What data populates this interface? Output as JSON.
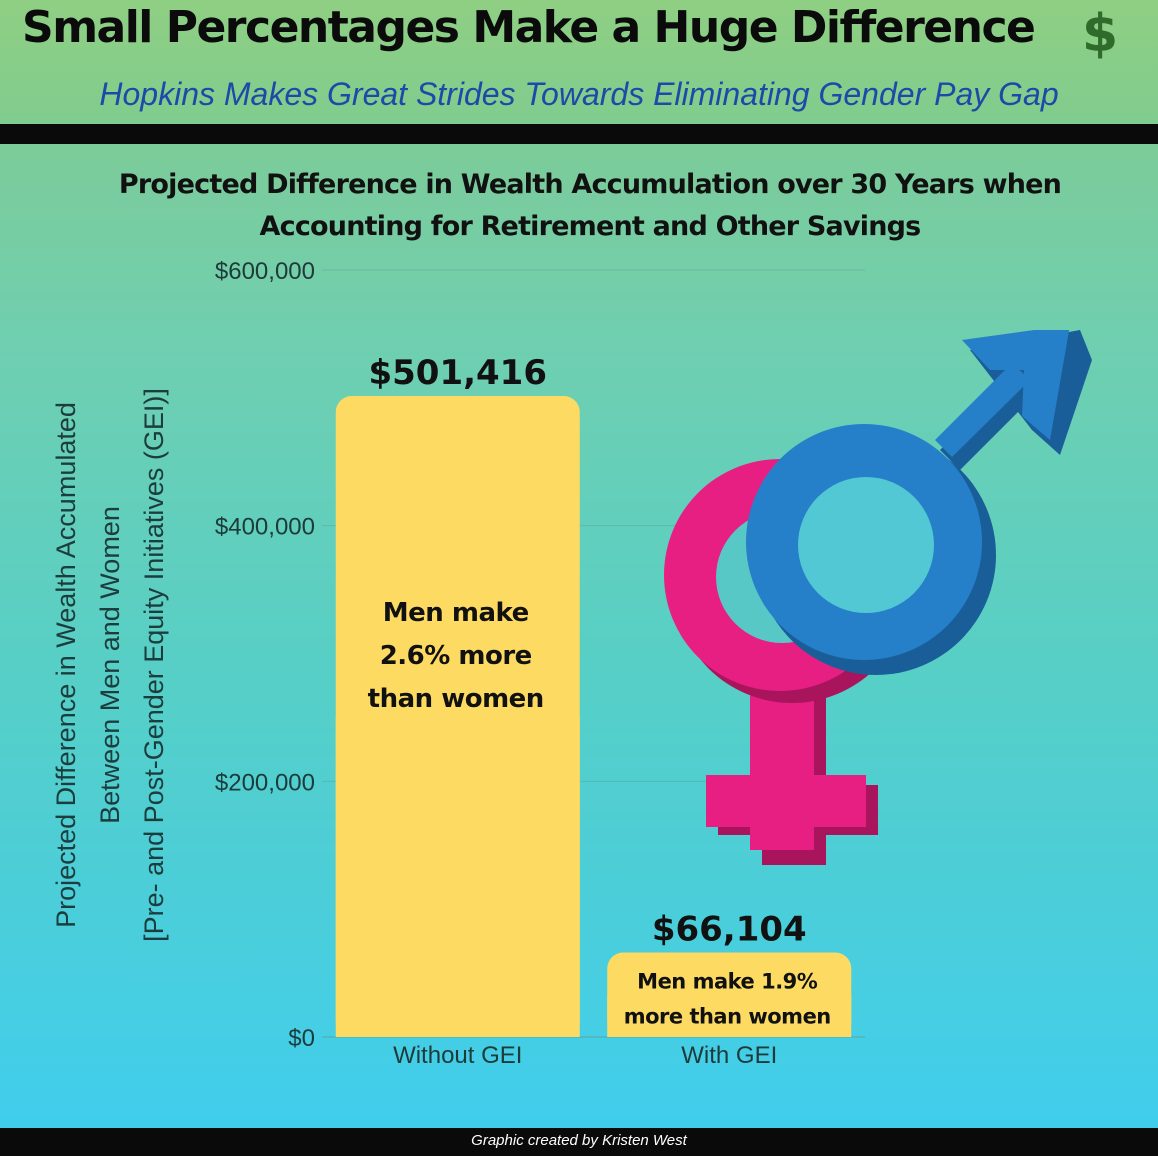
{
  "header": {
    "title": "Small Percentages Make a Huge Difference",
    "dollar_glyph": "$",
    "subtitle": "Hopkins Makes Great Strides Towards Eliminating Gender Pay Gap"
  },
  "footer": {
    "credit": "Graphic created by Kristen West"
  },
  "icons": {
    "header": "dollar-sign-icon",
    "illustration": "gender-symbols-icon"
  },
  "colors": {
    "bar": "#fddb63",
    "female_symbol": "#e81f82",
    "male_symbol": "#2580c9",
    "subtitle": "#1f49a8"
  },
  "chart_data": {
    "type": "bar",
    "title_lines": [
      "Projected Difference in Wealth Accumulation over 30 Years when",
      "Accounting for Retirement and Other Savings"
    ],
    "ylabel_lines": [
      "Projected Difference in Wealth Accumulated",
      "Between Men and Women",
      "[Pre- and Post-Gender Equity Initiatives (GEI)]"
    ],
    "categories": [
      "Without GEI",
      "With GEI"
    ],
    "values": [
      501416,
      66104
    ],
    "value_labels": [
      "$501,416",
      "$66,104"
    ],
    "annotations": [
      [
        "Men make",
        "2.6% more",
        "than women"
      ],
      [
        "Men make 1.9%",
        "more than women"
      ]
    ],
    "ylim": [
      0,
      600000
    ],
    "yticks": [
      0,
      200000,
      400000,
      600000
    ],
    "ytick_labels": [
      "$0",
      "$200,000",
      "$400,000",
      "$600,000"
    ],
    "grid": true
  }
}
